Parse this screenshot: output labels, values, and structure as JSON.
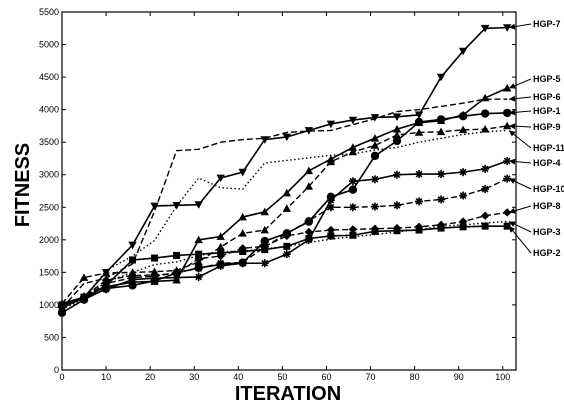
{
  "chart_data": {
    "type": "line",
    "xlabel": "ITERATION",
    "ylabel": "FITNESS",
    "xlim": [
      0,
      103
    ],
    "ylim": [
      0,
      5500
    ],
    "xticks": [
      0,
      10,
      20,
      30,
      40,
      50,
      60,
      70,
      80,
      90,
      100
    ],
    "yticks": [
      0,
      500,
      1000,
      1500,
      2000,
      2500,
      3000,
      3500,
      4000,
      4500,
      5000,
      5500
    ],
    "grid": false,
    "legend_placement": "right, labels with arrows pointing to series end points",
    "x": [
      0,
      5,
      10,
      16,
      21,
      26,
      31,
      36,
      41,
      46,
      51,
      56,
      61,
      66,
      71,
      76,
      81,
      86,
      91,
      96,
      101
    ],
    "series": [
      {
        "name": "HGP-7",
        "marker": "triangle-down",
        "line": "solid",
        "values": [
          950,
          1120,
          1500,
          1920,
          2520,
          2530,
          2540,
          2950,
          3040,
          3540,
          3580,
          3680,
          3780,
          3840,
          3880,
          3890,
          3920,
          4500,
          4900,
          5250,
          5260
        ]
      },
      {
        "name": "HGP-5",
        "marker": "triangle-up",
        "line": "solid",
        "values": [
          1020,
          1120,
          1280,
          1350,
          1360,
          1380,
          2000,
          2050,
          2350,
          2430,
          2720,
          3060,
          3240,
          3420,
          3560,
          3700,
          3800,
          3830,
          3920,
          4180,
          4330
        ]
      },
      {
        "name": "HGP-6",
        "marker": "none",
        "line": "dashed",
        "values": [
          950,
          1330,
          1410,
          1630,
          2440,
          3370,
          3390,
          3500,
          3540,
          3560,
          3650,
          3670,
          3680,
          3770,
          3860,
          3970,
          4000,
          4050,
          4100,
          4160,
          4160
        ]
      },
      {
        "name": "HGP-1",
        "marker": "circle",
        "line": "solid",
        "values": [
          880,
          1080,
          1250,
          1300,
          1370,
          1490,
          1570,
          1620,
          1650,
          1980,
          2100,
          2280,
          2660,
          2770,
          3290,
          3520,
          3810,
          3850,
          3900,
          3940,
          3950
        ]
      },
      {
        "name": "HGP-9",
        "marker": "triangle-up",
        "line": "dashed",
        "values": [
          1020,
          1420,
          1490,
          1500,
          1510,
          1530,
          1660,
          1890,
          2100,
          2150,
          2480,
          2820,
          3200,
          3350,
          3450,
          3610,
          3650,
          3660,
          3690,
          3700,
          3750
        ]
      },
      {
        "name": "HGP-11",
        "marker": "none",
        "line": "dotted",
        "values": [
          940,
          1080,
          1530,
          1750,
          1990,
          2520,
          2950,
          2800,
          2780,
          3180,
          3220,
          3260,
          3300,
          3320,
          3380,
          3420,
          3500,
          3560,
          3620,
          3660,
          3680
        ]
      },
      {
        "name": "HGP-4",
        "marker": "star",
        "line": "solid",
        "values": [
          970,
          1100,
          1240,
          1390,
          1410,
          1420,
          1430,
          1600,
          1640,
          1640,
          1780,
          2000,
          2610,
          2900,
          2930,
          3000,
          3010,
          3010,
          3040,
          3090,
          3210
        ]
      },
      {
        "name": "HGP-10",
        "marker": "star",
        "line": "dashed",
        "values": [
          960,
          1120,
          1330,
          1420,
          1440,
          1500,
          1560,
          1640,
          1650,
          1890,
          2100,
          2290,
          2500,
          2500,
          2510,
          2530,
          2590,
          2620,
          2680,
          2780,
          2940
        ]
      },
      {
        "name": "HGP-8",
        "marker": "diamond",
        "line": "dashed",
        "values": [
          980,
          1130,
          1380,
          1450,
          1460,
          1480,
          1710,
          1750,
          1870,
          1900,
          2060,
          2120,
          2150,
          2160,
          2170,
          2180,
          2200,
          2230,
          2280,
          2370,
          2420
        ]
      },
      {
        "name": "HGP-3",
        "marker": "none",
        "line": "dotted",
        "values": [
          970,
          1110,
          1350,
          1500,
          1620,
          1660,
          1760,
          1810,
          1830,
          1860,
          1900,
          1960,
          2010,
          2050,
          2080,
          2120,
          2160,
          2210,
          2230,
          2260,
          2280
        ]
      },
      {
        "name": "HGP-2",
        "marker": "square",
        "line": "solid",
        "values": [
          1000,
          1100,
          1300,
          1690,
          1720,
          1760,
          1780,
          1800,
          1820,
          1850,
          1900,
          2020,
          2060,
          2070,
          2130,
          2140,
          2150,
          2180,
          2200,
          2210,
          2210
        ]
      }
    ],
    "legend_entries": [
      "HGP-7",
      "HGP-5",
      "HGP-6",
      "HGP-1",
      "HGP-9",
      "HGP-11",
      "HGP-4",
      "HGP-10",
      "HGP-8",
      "HGP-3",
      "HGP-2"
    ]
  }
}
